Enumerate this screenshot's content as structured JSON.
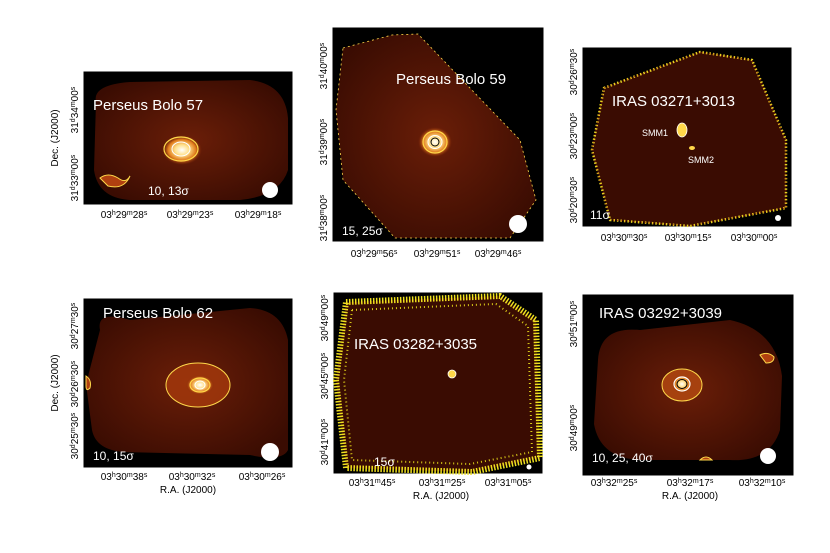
{
  "figure": {
    "panels": [
      {
        "name": "Perseus Bolo 57",
        "sigma": "10, 13σ",
        "x_ticks": [
          "03h29m28s",
          "03h29m23s",
          "03h29m18s"
        ],
        "y_ticks": [
          "31d33m00s",
          "31d34m00s"
        ],
        "y_label": "Dec. (J2000)",
        "x_label": "",
        "beam": true,
        "labels": []
      },
      {
        "name": "Perseus Bolo 59",
        "sigma": "15, 25σ",
        "x_ticks": [
          "03h29m56s",
          "03h29m51s",
          "03h29m46s"
        ],
        "y_ticks": [
          "31d38m00s",
          "31d39m00s",
          "31d40m00s"
        ],
        "y_label": "",
        "x_label": "",
        "beam": true,
        "labels": []
      },
      {
        "name": "IRAS 03271+3013",
        "sigma": "11σ",
        "x_ticks": [
          "03h30m30s",
          "03h30m15s",
          "03h30m00s"
        ],
        "y_ticks": [
          "30d20m30s",
          "30d23m00s",
          "30d26m30s"
        ],
        "y_label": "",
        "x_label": "",
        "beam": true,
        "labels": [
          "SMM1",
          "SMM2"
        ]
      },
      {
        "name": "Perseus Bolo 62",
        "sigma": "10, 15σ",
        "x_ticks": [
          "03h30m38s",
          "03h30m32s",
          "03h30m26s"
        ],
        "y_ticks": [
          "30d25m30s",
          "30d26m30s",
          "30d27m30s"
        ],
        "y_label": "Dec. (J2000)",
        "x_label": "R.A. (J2000)",
        "beam": true,
        "labels": []
      },
      {
        "name": "IRAS 03282+3035",
        "sigma": "15σ",
        "x_ticks": [
          "03h31m45s",
          "03h31m25s",
          "03h31m05s"
        ],
        "y_ticks": [
          "30d41m00s",
          "30d45m00s",
          "30d49m00s"
        ],
        "y_label": "",
        "x_label": "R.A. (J2000)",
        "beam": true,
        "labels": []
      },
      {
        "name": "IRAS 03292+3039",
        "sigma": "10, 25, 40σ",
        "x_ticks": [
          "03h32m25s",
          "03h32m17s",
          "03h32m10s"
        ],
        "y_ticks": [
          "30d49m00s",
          "30d51m00s"
        ],
        "y_label": "",
        "x_label": "R.A. (J2000)",
        "beam": true,
        "labels": []
      }
    ]
  }
}
